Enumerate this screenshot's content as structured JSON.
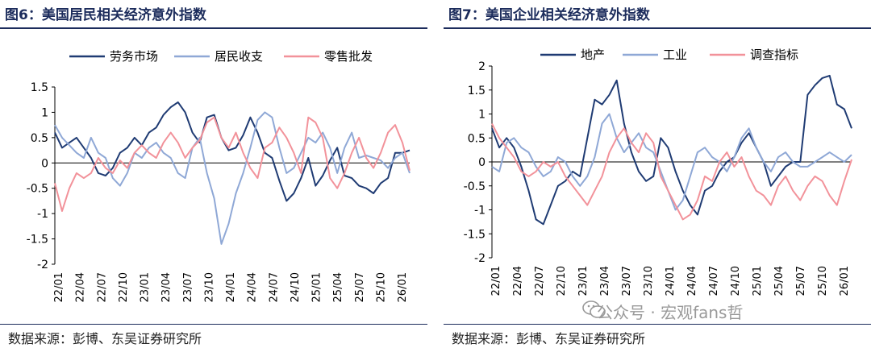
{
  "left_title": "图6：美国居民相关经济意外指数",
  "right_title": "图7：美国企业相关经济意外指数",
  "left_source": "数据来源：彭博、东吴证券研究所",
  "right_source": "数据来源：彭博、东吴证券研究所",
  "watermark": "公众号 · 宏观fans哲",
  "chart_data": [
    {
      "type": "line",
      "title": "美国居民相关经济意外指数",
      "xlabel": "",
      "ylabel": "",
      "ylim": [
        -2,
        1.5
      ],
      "yticks": [
        "1.5",
        "1",
        "0.5",
        "0",
        "-0.5",
        "-1",
        "-1.5",
        "-2"
      ],
      "x_tick_labels": [
        "22/01",
        "22/04",
        "22/07",
        "22/10",
        "23/01",
        "23/04",
        "23/07",
        "23/10",
        "24/01",
        "24/04",
        "24/07",
        "24/10",
        "25/01",
        "25/04",
        "25/07",
        "25/10",
        "26/01"
      ],
      "x_period": "monthly 2022-01 to 2026-02",
      "series": [
        {
          "name": "劳务市场",
          "color": "#1f3b73",
          "values": [
            0.6,
            0.3,
            0.4,
            0.5,
            0.3,
            0.1,
            -0.2,
            -0.25,
            -0.1,
            0.2,
            0.3,
            0.5,
            0.35,
            0.6,
            0.7,
            0.95,
            1.1,
            1.2,
            1.0,
            0.6,
            0.4,
            0.9,
            0.95,
            0.5,
            0.25,
            0.3,
            0.55,
            0.9,
            0.6,
            0.2,
            0.1,
            -0.35,
            -0.75,
            -0.6,
            -0.3,
            0.1,
            -0.45,
            -0.25,
            0.05,
            0.3,
            -0.25,
            -0.3,
            -0.45,
            -0.5,
            -0.6,
            -0.4,
            -0.3,
            0.2,
            0.2,
            0.25
          ]
        },
        {
          "name": "居民收支",
          "color": "#8fa8d6",
          "values": [
            0.75,
            0.5,
            0.35,
            0.2,
            0.1,
            0.5,
            0.2,
            0.1,
            -0.3,
            -0.45,
            -0.2,
            0.2,
            0.1,
            0.3,
            0.4,
            0.2,
            0.1,
            -0.2,
            -0.3,
            0.3,
            0.5,
            -0.2,
            -0.7,
            -1.6,
            -1.2,
            -0.6,
            -0.2,
            0.3,
            0.85,
            1.0,
            0.9,
            0.3,
            -0.2,
            -0.1,
            0.2,
            0.5,
            0.4,
            0.6,
            0.3,
            -0.2,
            0.3,
            0.6,
            0.1,
            0.15,
            0.1,
            0.05,
            -0.1,
            0.1,
            0.2,
            -0.2
          ]
        },
        {
          "name": "零售批发",
          "color": "#f2929a",
          "values": [
            -0.4,
            -0.95,
            -0.5,
            -0.2,
            -0.3,
            -0.2,
            0.1,
            -0.1,
            -0.2,
            0.05,
            -0.1,
            0.2,
            0.35,
            0.2,
            0.1,
            0.4,
            0.6,
            0.4,
            0.1,
            0.3,
            0.45,
            0.8,
            0.9,
            0.5,
            0.3,
            0.6,
            0.2,
            -0.1,
            -0.3,
            0.3,
            0.4,
            0.7,
            0.5,
            0.2,
            -0.2,
            0.9,
            0.8,
            0.5,
            -0.3,
            -0.5,
            -0.2,
            0.2,
            0.5,
            0.1,
            -0.1,
            0.2,
            0.6,
            0.75,
            0.4,
            -0.15
          ]
        }
      ]
    },
    {
      "type": "line",
      "title": "美国企业相关经济意外指数",
      "xlabel": "",
      "ylabel": "",
      "ylim": [
        -2,
        2
      ],
      "yticks": [
        "2",
        "1.5",
        "1",
        "0.5",
        "0",
        "-0.5",
        "-1",
        "-1.5",
        "-2"
      ],
      "x_tick_labels": [
        "22/01",
        "22/04",
        "22/07",
        "22/10",
        "23/01",
        "23/04",
        "23/07",
        "23/10",
        "24/01",
        "24/04",
        "24/07",
        "24/10",
        "25/01",
        "25/04",
        "25/07",
        "25/10",
        "26/01"
      ],
      "x_period": "monthly 2022-01 to 2026-02",
      "series": [
        {
          "name": "地产",
          "color": "#1f3b73",
          "values": [
            0.7,
            0.3,
            0.5,
            0.3,
            -0.1,
            -0.6,
            -1.2,
            -1.3,
            -0.9,
            -0.5,
            -0.4,
            -0.2,
            -0.3,
            0.5,
            1.3,
            1.2,
            1.4,
            1.7,
            0.8,
            0.2,
            -0.2,
            -0.4,
            -0.3,
            0.5,
            0.3,
            -0.2,
            -0.6,
            -0.9,
            -1.1,
            -0.6,
            -0.5,
            -0.2,
            0.0,
            0.1,
            0.4,
            0.6,
            0.3,
            0.0,
            -0.5,
            -0.3,
            -0.1,
            0.0,
            0.0,
            1.4,
            1.6,
            1.75,
            1.8,
            1.2,
            1.1,
            0.7
          ]
        },
        {
          "name": "工业",
          "color": "#8fa8d6",
          "values": [
            -0.1,
            -0.2,
            0.4,
            0.5,
            0.3,
            0.2,
            -0.1,
            -0.3,
            -0.2,
            0.1,
            0.0,
            -0.3,
            -0.5,
            -0.3,
            0.1,
            0.8,
            1.0,
            0.5,
            0.2,
            0.4,
            0.6,
            0.3,
            0.2,
            -0.2,
            -0.6,
            -1.0,
            -0.8,
            -0.3,
            0.2,
            0.3,
            0.1,
            0.0,
            -0.2,
            0.1,
            0.5,
            0.7,
            0.3,
            0.0,
            -0.2,
            0.1,
            0.2,
            0.0,
            -0.1,
            -0.1,
            0.0,
            0.1,
            0.2,
            0.1,
            0.0,
            0.15
          ]
        },
        {
          "name": "调查指标",
          "color": "#f2929a",
          "values": [
            0.8,
            0.5,
            0.3,
            0.1,
            -0.2,
            -0.3,
            -0.2,
            0.0,
            -0.1,
            0.0,
            -0.3,
            -0.5,
            -0.7,
            -0.9,
            -0.6,
            -0.3,
            0.2,
            0.5,
            0.7,
            0.4,
            0.2,
            0.6,
            0.4,
            -0.3,
            -0.6,
            -0.9,
            -1.2,
            -1.1,
            -0.8,
            -0.3,
            -0.4,
            0.0,
            0.2,
            -0.1,
            0.1,
            -0.3,
            -0.6,
            -0.7,
            -0.9,
            -0.5,
            -0.3,
            -0.6,
            -0.8,
            -0.5,
            -0.3,
            -0.4,
            -0.7,
            -0.9,
            -0.4,
            0.05
          ]
        }
      ]
    }
  ]
}
